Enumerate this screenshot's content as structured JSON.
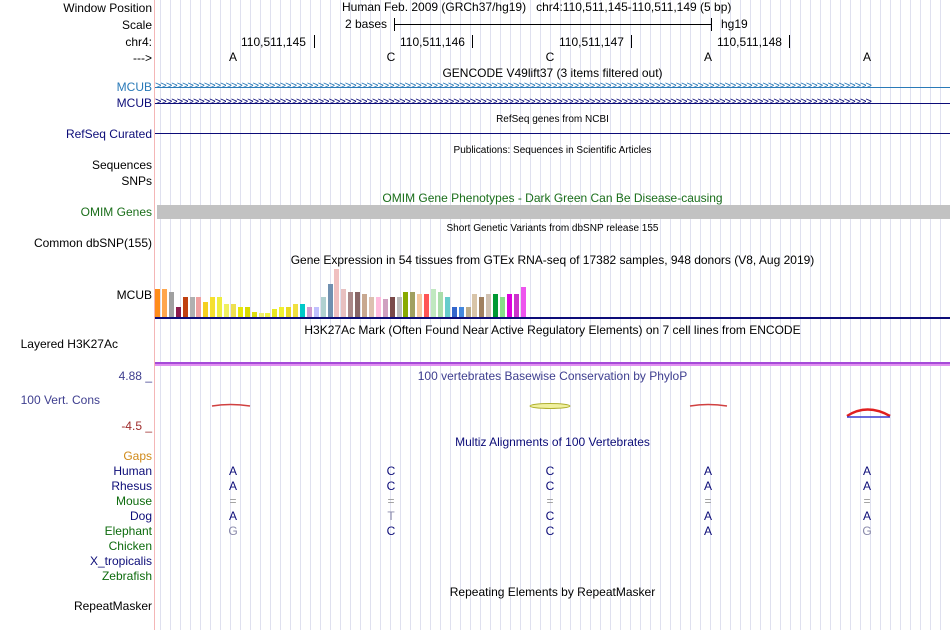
{
  "labels": {
    "window_position": "Window Position",
    "scale": "Scale",
    "chrom": "chr4:",
    "strand": "--->",
    "mcub1": "MCUB",
    "mcub2": "MCUB",
    "refseq": "RefSeq Curated",
    "sequences": "Sequences",
    "snps": "SNPs",
    "omim": "OMIM Genes",
    "common_dbsnp": "Common dbSNP(155)",
    "gtex_gene": "MCUB",
    "layered": "Layered H3K27Ac",
    "cons_max": "4.88 _",
    "cons_label": "100 Vert. Cons",
    "cons_min": "-4.5 _",
    "gaps": "Gaps",
    "human": "Human",
    "rhesus": "Rhesus",
    "mouse": "Mouse",
    "dog": "Dog",
    "elephant": "Elephant",
    "chicken": "Chicken",
    "xtrop": "X_tropicalis",
    "zebrafish": "Zebrafish",
    "repeatmasker": "RepeatMasker"
  },
  "header": {
    "assembly": "Human Feb. 2009 (GRCh37/hg19)",
    "position": "chr4:110,511,145-110,511,149 (5 bp)",
    "scale_text": "2 bases",
    "scale_db": "hg19",
    "coords": [
      "110,511,145",
      "110,511,146",
      "110,511,147",
      "110,511,148"
    ],
    "bases": [
      "A",
      "C",
      "C",
      "A",
      "A"
    ]
  },
  "tracks": {
    "gencode_title": "GENCODE V49lift37 (3 items filtered out)",
    "refseq_title": "RefSeq genes from NCBI",
    "publications_title": "Publications: Sequences in Scientific Articles",
    "omim_title": "OMIM Gene Phenotypes - Dark Green Can Be Disease-causing",
    "dbsnp_title": "Short Genetic Variants from dbSNP release 155",
    "gtex_title": "Gene Expression in 54 tissues from GTEx RNA-seq of 17382 samples, 948 donors (V8, Aug 2019)",
    "h3k27ac_title": "H3K27Ac Mark (Often Found Near Active Regulatory Elements) on 7 cell lines from ENCODE",
    "phylop_title": "100 vertebrates Basewise Conservation by PhyloP",
    "multiz_title": "Multiz Alignments of 100 Vertebrates",
    "repeatmasker_title": "Repeating Elements by RepeatMasker",
    "chevrons": ">>>>>>>>>>>>>>>>>>>>>>>>>>>>>>>>>>>>>>>>>>>>>>>>>>>>>>>>>>>>>>>>>>>>>>>>>>>>>>>>>>>>>>>>>>>>>>>>>>>>>>>>>>>>>>>>>>>>>>>>>>>>>>>>>>>>"
  },
  "alignment": {
    "human": [
      "A",
      "C",
      "C",
      "A",
      "A"
    ],
    "rhesus": [
      "A",
      "C",
      "C",
      "A",
      "A"
    ],
    "mouse": [
      "=",
      "=",
      "=",
      "=",
      "="
    ],
    "dog": [
      "A",
      "T",
      "C",
      "A",
      "A"
    ],
    "elephant": [
      "G",
      "C",
      "C",
      "A",
      "G"
    ]
  },
  "colors": {
    "gencode_mcub": "#2a7ab8",
    "mcub_dark": "#0c0c78",
    "omim_green": "#1a6e1a",
    "cons_blue": "#3e3e8f",
    "cons_red": "#9e2b2b",
    "gaps_orange": "#d08a1a",
    "species_green": "#0d6b0d"
  },
  "gtex_values": [
    0.55,
    0.55,
    0.5,
    0.2,
    0.4,
    0.4,
    0.4,
    0.3,
    0.4,
    0.4,
    0.25,
    0.25,
    0.2,
    0.2,
    0.1,
    0.08,
    0.08,
    0.15,
    0.2,
    0.2,
    0.25,
    0.25,
    0.2,
    0.2,
    0.4,
    0.65,
    0.95,
    0.55,
    0.5,
    0.5,
    0.45,
    0.4,
    0.4,
    0.35,
    0.4,
    0.4,
    0.5,
    0.5,
    0.45,
    0.45,
    0.55,
    0.5,
    0.4,
    0.2,
    0.2,
    0.2,
    0.45,
    0.4,
    0.45,
    0.45,
    0.4,
    0.45,
    0.45,
    0.6
  ],
  "gtex_colors": [
    "#ff8c1a",
    "#ffa64d",
    "#a0a0a0",
    "#8b1a4a",
    "#c04010",
    "#b0b0b0",
    "#f0a0a0",
    "#f5d020",
    "#f5e030",
    "#eeee40",
    "#f0f060",
    "#eee050",
    "#e6e60a",
    "#d9d900",
    "#dede10",
    "#eeee70",
    "#f0f040",
    "#e8e820",
    "#f0f030",
    "#e8d820",
    "#f0e040",
    "#00c8c8",
    "#d09ad0",
    "#c0c0ff",
    "#b0d0d0",
    "#7090b0",
    "#f0c0c0",
    "#e8c0c0",
    "#aa8888",
    "#886666",
    "#c8a890",
    "#dcc0b0",
    "#ffbbdd",
    "#d0a0c0",
    "#7a4a4a",
    "#bbbbbb",
    "#88aa00",
    "#a0a060",
    "#f4c8a0",
    "#ff5555",
    "#c0e8c0",
    "#aaddaa",
    "#66cccc",
    "#3366cc",
    "#4488dd",
    "#bbaa88",
    "#d8c4a8",
    "#a08060",
    "#d0c0b0",
    "#009933",
    "#88dd88",
    "#dd00dd",
    "#cc33cc",
    "#ee55ee"
  ]
}
